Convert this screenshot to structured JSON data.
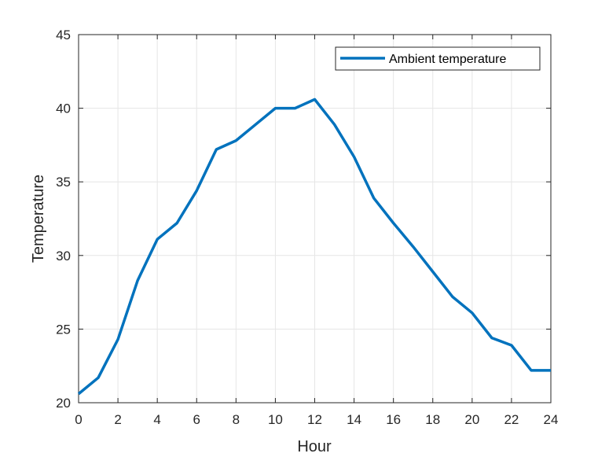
{
  "chart_data": {
    "type": "line",
    "title": "",
    "xlabel": "Hour",
    "ylabel": "Temperature",
    "xlim": [
      0,
      24
    ],
    "ylim": [
      20,
      45
    ],
    "x_ticks": [
      "0",
      "2",
      "4",
      "6",
      "8",
      "10",
      "12",
      "14",
      "16",
      "18",
      "20",
      "22",
      "24"
    ],
    "y_ticks": [
      "20",
      "25",
      "30",
      "35",
      "40",
      "45"
    ],
    "grid": true,
    "legend_position": "top-right",
    "series": [
      {
        "name": "Ambient temperature",
        "color": "#0072BD",
        "x": [
          0,
          1,
          2,
          3,
          4,
          5,
          6,
          7,
          8,
          9,
          10,
          11,
          12,
          13,
          14,
          15,
          16,
          17,
          18,
          19,
          20,
          21,
          22,
          23,
          24
        ],
        "y": [
          20.6,
          21.7,
          24.3,
          28.3,
          31.1,
          32.2,
          34.4,
          37.2,
          37.8,
          38.9,
          40.0,
          40.0,
          40.6,
          38.9,
          36.7,
          33.9,
          32.2,
          30.6,
          28.9,
          27.2,
          26.1,
          24.4,
          23.9,
          22.2,
          22.2
        ]
      }
    ]
  }
}
